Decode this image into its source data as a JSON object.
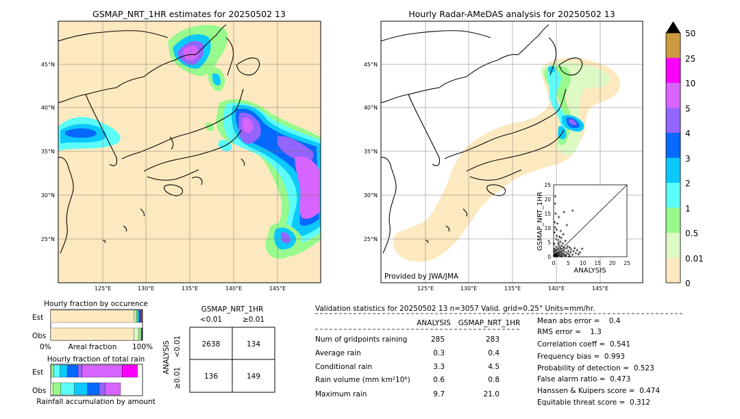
{
  "colors": {
    "ocean": "#ffffff",
    "land_fill": "#ffffff",
    "estimate_bg": "#fde9bf",
    "scale": [
      "#fde9bf",
      "#ddf9c4",
      "#98f98c",
      "#5cfdf8",
      "#0cc9fc",
      "#0668fc",
      "#9465fd",
      "#d764fc",
      "#fa00fc",
      "#cc9a3e"
    ]
  },
  "map_left": {
    "title": "GSMAP_NRT_1HR estimates for 20250502 13",
    "lat_labels": [
      "45°N",
      "40°N",
      "35°N",
      "30°N",
      "25°N"
    ],
    "lon_labels": [
      "125°E",
      "130°E",
      "135°E",
      "140°E",
      "145°E"
    ]
  },
  "map_right": {
    "title": "Hourly Radar-AMeDAS analysis for 20250502 13",
    "lat_labels": [
      "45°N",
      "40°N",
      "35°N",
      "30°N",
      "25°N"
    ],
    "lon_labels": [
      "125°E",
      "130°E",
      "135°E",
      "140°E",
      "145°E"
    ],
    "credit": "Provided by JWA/JMA"
  },
  "colorbar": {
    "ticks": [
      "0",
      "0.01",
      "0.5",
      "1",
      "2",
      "3",
      "4",
      "5",
      "10",
      "25",
      "50"
    ]
  },
  "scatter": {
    "xlabel": "ANALYSIS",
    "ylabel": "GSMAP_NRT_1HR",
    "ticks": [
      "0",
      "5",
      "10",
      "15",
      "20",
      "25"
    ]
  },
  "occurrence": {
    "title": "Hourly fraction by occurence",
    "row_est": "Est",
    "row_obs": "Obs",
    "axis_left": "0%",
    "axis_mid": "Areal fraction",
    "axis_right": "100%"
  },
  "total_rain": {
    "title": "Hourly fraction of total rain",
    "row_est": "Est",
    "row_obs": "Obs",
    "footer": "Rainfall accumulation by amount"
  },
  "contingency": {
    "title": "GSMAP_NRT_1HR",
    "col_lt": "<0.01",
    "col_ge": "≥0.01",
    "side_label": "ANALYSIS",
    "row_lt": "<0.01",
    "row_ge": "≥0.01",
    "cells": [
      "2638",
      "134",
      "136",
      "149"
    ]
  },
  "validation": {
    "header": "Validation statistics for 20250502 13  n=3057 Valid. grid=0.25° Units=mm/hr.",
    "col_analysis": "ANALYSIS",
    "col_gsmap": "GSMAP_NRT_1HR",
    "rows": [
      {
        "label": "Num of gridpoints raining",
        "analysis": "285",
        "gsmap": "283"
      },
      {
        "label": "Average rain",
        "analysis": "0.3",
        "gsmap": "0.4"
      },
      {
        "label": "Conditional rain",
        "analysis": "3.3",
        "gsmap": "4.5"
      },
      {
        "label": "Rain volume (mm km²10⁶)",
        "analysis": "0.6",
        "gsmap": "0.8"
      },
      {
        "label": "Maximum rain",
        "analysis": "9.7",
        "gsmap": "21.0"
      }
    ],
    "scores": [
      "Mean abs error =    0.4",
      "RMS error =    1.3",
      "Correlation coeff =  0.541",
      "Frequency bias =  0.993",
      "Probability of detection =  0.523",
      "False alarm ratio =  0.473",
      "Hanssen & Kuipers score =  0.474",
      "Equitable threat score =  0.312"
    ]
  },
  "chart_data": [
    {
      "type": "scatter",
      "title": "",
      "xlabel": "ANALYSIS",
      "ylabel": "GSMAP_NRT_1HR",
      "xlim": [
        0,
        25
      ],
      "ylim": [
        0,
        25
      ],
      "points": [
        [
          0.2,
          0.3
        ],
        [
          0.3,
          0.6
        ],
        [
          0.5,
          0.2
        ],
        [
          0.4,
          1.1
        ],
        [
          0.6,
          0.8
        ],
        [
          0.8,
          0.4
        ],
        [
          0.9,
          1.6
        ],
        [
          1.0,
          0.7
        ],
        [
          1.1,
          2.2
        ],
        [
          1.2,
          1.0
        ],
        [
          1.3,
          0.3
        ],
        [
          1.4,
          3.0
        ],
        [
          1.5,
          1.4
        ],
        [
          1.6,
          0.6
        ],
        [
          1.7,
          2.5
        ],
        [
          1.8,
          4.1
        ],
        [
          1.9,
          1.2
        ],
        [
          2.0,
          0.5
        ],
        [
          2.1,
          3.4
        ],
        [
          2.2,
          1.8
        ],
        [
          2.3,
          5.2
        ],
        [
          2.4,
          0.9
        ],
        [
          2.5,
          2.8
        ],
        [
          2.6,
          6.5
        ],
        [
          2.7,
          1.5
        ],
        [
          2.8,
          3.8
        ],
        [
          2.9,
          0.4
        ],
        [
          3.0,
          2.1
        ],
        [
          3.1,
          4.6
        ],
        [
          3.2,
          1.1
        ],
        [
          3.3,
          7.8
        ],
        [
          3.4,
          2.4
        ],
        [
          3.5,
          0.8
        ],
        [
          3.6,
          3.1
        ],
        [
          3.8,
          1.7
        ],
        [
          4.0,
          5.5
        ],
        [
          4.2,
          0.6
        ],
        [
          4.4,
          2.9
        ],
        [
          4.6,
          1.3
        ],
        [
          4.8,
          3.6
        ],
        [
          5.0,
          2.0
        ],
        [
          5.2,
          0.9
        ],
        [
          5.5,
          3.2
        ],
        [
          5.8,
          1.6
        ],
        [
          6.0,
          2.6
        ],
        [
          6.4,
          0.7
        ],
        [
          6.8,
          1.9
        ],
        [
          7.2,
          3.0
        ],
        [
          7.6,
          1.2
        ],
        [
          8.0,
          2.3
        ],
        [
          8.5,
          0.9
        ],
        [
          9.0,
          1.5
        ],
        [
          9.7,
          2.8
        ],
        [
          0.3,
          8.5
        ],
        [
          0.5,
          10.2
        ],
        [
          0.4,
          12.0
        ],
        [
          0.7,
          15.0
        ],
        [
          0.6,
          21.0
        ],
        [
          1.0,
          9.4
        ],
        [
          1.3,
          11.5
        ],
        [
          1.8,
          13.8
        ],
        [
          2.0,
          6.9
        ],
        [
          1.5,
          5.8
        ],
        [
          0.2,
          4.5
        ],
        [
          0.8,
          6.2
        ],
        [
          1.1,
          7.3
        ],
        [
          2.4,
          9.0
        ],
        [
          0.3,
          2.7
        ],
        [
          0.9,
          3.5
        ],
        [
          1.6,
          4.8
        ],
        [
          6.5,
          16.0
        ],
        [
          3.5,
          15.5
        ],
        [
          4.5,
          11.0
        ],
        [
          0.5,
          18.5
        ],
        [
          1.2,
          0.2
        ],
        [
          2.6,
          0.2
        ],
        [
          3.9,
          0.3
        ],
        [
          5.4,
          0.2
        ],
        [
          0.2,
          1.9
        ],
        [
          0.6,
          2.4
        ]
      ]
    },
    {
      "type": "bar",
      "title": "Hourly fraction by occurence",
      "xlabel": "Areal fraction",
      "categories": [
        "Est",
        "Obs"
      ],
      "series": [
        {
          "values": [
            0.907,
            0.905
          ]
        },
        {
          "values": [
            0.025,
            0.053
          ]
        },
        {
          "values": [
            0.009,
            0.027
          ]
        },
        {
          "values": [
            0.013,
            0.004
          ]
        },
        {
          "values": [
            0.011,
            0.005
          ]
        },
        {
          "values": [
            0.01,
            0.004
          ]
        },
        {
          "values": [
            0.005,
            0.001
          ]
        },
        {
          "values": [
            0.008,
            0.001
          ]
        },
        {
          "values": [
            0.007,
            0.0
          ]
        },
        {
          "values": [
            0.005,
            0.0
          ]
        }
      ]
    },
    {
      "type": "bar",
      "title": "Hourly fraction of total rain",
      "xlabel": "Rainfall accumulation by amount",
      "categories": [
        "Est",
        "Obs"
      ],
      "series": [
        {
          "values": [
            0.0,
            0.0
          ]
        },
        {
          "values": [
            0.007,
            0.025
          ]
        },
        {
          "values": [
            0.026,
            0.084
          ]
        },
        {
          "values": [
            0.07,
            0.149
          ]
        },
        {
          "values": [
            0.08,
            0.143
          ]
        },
        {
          "values": [
            0.112,
            0.127
          ]
        },
        {
          "values": [
            0.047,
            0.065
          ]
        },
        {
          "values": [
            0.435,
            0.168
          ]
        },
        {
          "values": [
            0.168,
            0.0
          ]
        },
        {
          "values": [
            0.0,
            0.0
          ]
        }
      ]
    }
  ]
}
